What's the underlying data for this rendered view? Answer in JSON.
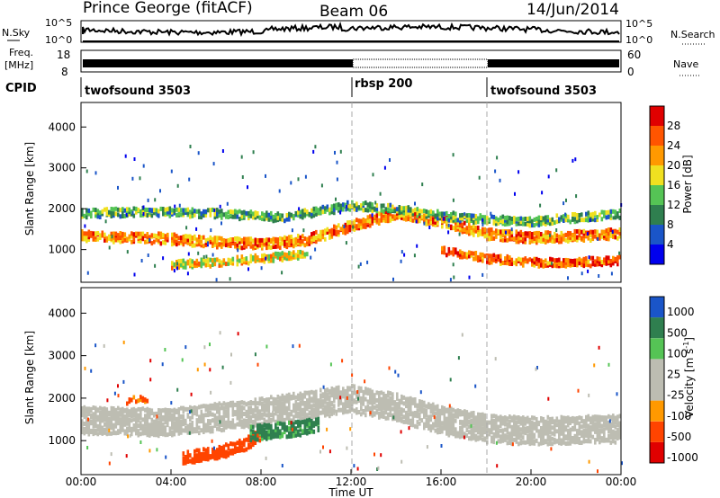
{
  "header": {
    "station": "Prince George (fitACF)",
    "beam": "Beam 06",
    "date": "14/Jun/2014"
  },
  "noise_panel": {
    "left_label": "N.Sky",
    "right_label": "N.Search",
    "left_ticks": [
      "10^5",
      "10^0"
    ],
    "right_ticks": [
      "10^5",
      "10^0"
    ]
  },
  "freq_panel": {
    "left_label_1": "Freq.",
    "left_label_2": "[MHz]",
    "right_label": "Nave",
    "left_ticks": [
      "18",
      "8"
    ],
    "right_ticks": [
      "60",
      "0"
    ]
  },
  "cpid": {
    "label": "CPID",
    "modes": [
      {
        "name": "twofsound 3503",
        "start_hour": 0,
        "end_hour": 12
      },
      {
        "name": "rbsp 200",
        "start_hour": 12,
        "end_hour": 18
      },
      {
        "name": "twofsound 3503",
        "start_hour": 18,
        "end_hour": 24
      }
    ]
  },
  "time_axis": {
    "label": "Time UT",
    "ticks": [
      "00:00",
      "04:00",
      "08:00",
      "12:00",
      "16:00",
      "20:00",
      "00:00"
    ]
  },
  "range_axis": {
    "label": "Slant Range [km]",
    "ticks": [
      "1000",
      "2000",
      "3000",
      "4000"
    ]
  },
  "power_colorbar": {
    "label": "Power [dB]",
    "ticks": [
      "4",
      "8",
      "12",
      "16",
      "20",
      "24",
      "28"
    ]
  },
  "velocity_colorbar": {
    "label": "Velocity [m s",
    "label_sup": "-1",
    "label_end": "]",
    "ticks": [
      "1000",
      "500",
      "100",
      "25",
      "-25",
      "-100",
      "-500",
      "-1000"
    ]
  },
  "colors": {
    "power": [
      "#0000ee",
      "#1a55c8",
      "#2f7f4f",
      "#55c455",
      "#f0e020",
      "#ff9900",
      "#ff5500",
      "#e00000"
    ],
    "velocity": [
      "#e00000",
      "#ff4400",
      "#ff9900",
      "#bdbdb2",
      "#bdbdb2",
      "#55c455",
      "#2f7f4f",
      "#1a55c8"
    ],
    "ground_scatter": "#bdbdb2"
  },
  "chart_data": {
    "type": "heatmap",
    "x_unit": "hours UT",
    "y_unit": "km",
    "xlim": [
      0,
      24
    ],
    "ylim": [
      200,
      4600
    ],
    "power_scale": [
      0,
      30
    ],
    "velocity_scale": [
      -1000,
      1000
    ],
    "power_bands": [
      {
        "x": [
          0,
          3,
          6,
          8,
          10,
          12,
          14,
          16,
          18,
          20,
          22,
          24
        ],
        "y": [
          1350,
          1300,
          1200,
          1150,
          1250,
          1600,
          1900,
          1700,
          1400,
          1300,
          1350,
          1400
        ],
        "width_km": 250,
        "power_db": 22
      },
      {
        "x": [
          0,
          3,
          6,
          9,
          12,
          14,
          16,
          18,
          20,
          22,
          24
        ],
        "y": [
          1900,
          1950,
          1900,
          1800,
          2100,
          2000,
          1850,
          1750,
          1700,
          1800,
          1900
        ],
        "width_km": 200,
        "power_db": 12
      },
      {
        "x": [
          16,
          18,
          20,
          22,
          24
        ],
        "y": [
          1000,
          800,
          700,
          700,
          750
        ],
        "width_km": 200,
        "power_db": 24
      },
      {
        "x": [
          4,
          6,
          8,
          10
        ],
        "y": [
          650,
          700,
          800,
          900
        ],
        "width_km": 180,
        "power_db": 18
      }
    ],
    "velocity_bands": [
      {
        "x": [
          4.5,
          5.5,
          6.5,
          7.5,
          8
        ],
        "y": [
          600,
          700,
          800,
          1000,
          1200
        ],
        "width_km": 300,
        "velocity": -200
      },
      {
        "x": [
          7.5,
          8.5,
          9.5,
          10.5
        ],
        "y": [
          1200,
          1250,
          1300,
          1400
        ],
        "width_km": 350,
        "velocity": 150
      },
      {
        "x": [
          2,
          2.5,
          3
        ],
        "y": [
          1950,
          2000,
          1950
        ],
        "width_km": 120,
        "velocity": -120
      }
    ],
    "ground_scatter_bands": [
      {
        "x": [
          0,
          4,
          8,
          12,
          14,
          16,
          18,
          20,
          24
        ],
        "y": [
          1500,
          1450,
          1700,
          2000,
          1800,
          1500,
          1300,
          1250,
          1300
        ],
        "width_km": 650
      }
    ]
  }
}
